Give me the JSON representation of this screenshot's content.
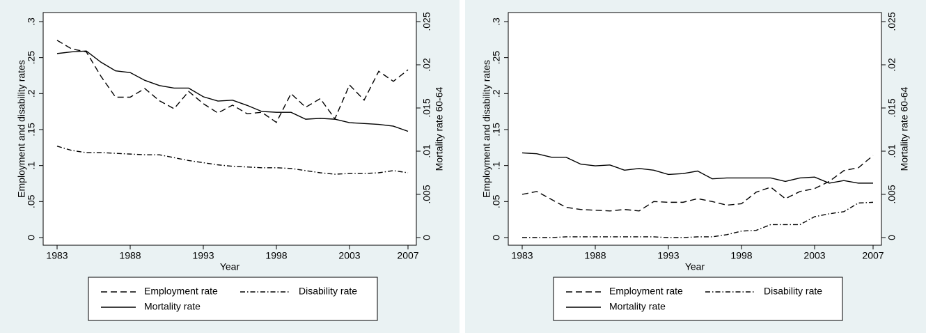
{
  "chart_data": [
    {
      "type": "line",
      "xlabel": "Year",
      "ylabel": "Employment and disability rates",
      "y2label": "Mortality rate 60-64",
      "x": [
        1983,
        1984,
        1985,
        1986,
        1987,
        1988,
        1989,
        1990,
        1991,
        1992,
        1993,
        1994,
        1995,
        1996,
        1997,
        1998,
        1999,
        2000,
        2001,
        2002,
        2003,
        2004,
        2005,
        2006,
        2007
      ],
      "xlim": [
        1983,
        2007
      ],
      "xticks": [
        1983,
        1988,
        1993,
        1998,
        2003,
        2007
      ],
      "ylim": [
        0,
        0.3
      ],
      "yticks": [
        0,
        {
          "value": 0.05,
          "label": ".05"
        },
        {
          "value": 0.1,
          "label": ".1"
        },
        {
          "value": 0.15,
          "label": ".15"
        },
        {
          "value": 0.2,
          "label": ".2"
        },
        {
          "value": 0.25,
          "label": ".25"
        },
        {
          "value": 0.3,
          "label": ".3"
        }
      ],
      "y2lim": [
        0,
        0.025
      ],
      "y2ticks": [
        0,
        {
          "value": 0.005,
          "label": ".005"
        },
        {
          "value": 0.01,
          "label": ".01"
        },
        {
          "value": 0.015,
          "label": ".015"
        },
        {
          "value": 0.02,
          "label": ".02"
        },
        {
          "value": 0.025,
          "label": ".025"
        }
      ],
      "series": [
        {
          "name": "Employment rate",
          "color": "#000000",
          "dash": "dashed",
          "values": [
            0.274,
            0.262,
            0.258,
            0.224,
            0.195,
            0.195,
            0.207,
            0.19,
            0.179,
            0.203,
            0.186,
            0.173,
            0.184,
            0.172,
            0.174,
            0.16,
            0.2,
            0.181,
            0.193,
            0.165,
            0.212,
            0.191,
            0.231,
            0.217,
            0.233
          ]
        },
        {
          "name": "Disability rate",
          "color": "#000000",
          "dash": "dashdot",
          "values": [
            0.127,
            0.121,
            0.118,
            0.118,
            0.117,
            0.116,
            0.115,
            0.115,
            0.111,
            0.107,
            0.104,
            0.101,
            0.099,
            0.098,
            0.097,
            0.097,
            0.096,
            0.093,
            0.09,
            0.088,
            0.089,
            0.089,
            0.09,
            0.093,
            0.09
          ]
        },
        {
          "name": "Mortality rate",
          "color": "#000000",
          "dash": "solid",
          "axis": "y2",
          "values": [
            0.0213,
            0.0215,
            0.0216,
            0.0203,
            0.0193,
            0.0191,
            0.0182,
            0.0176,
            0.0173,
            0.0173,
            0.0163,
            0.0158,
            0.0159,
            0.0153,
            0.0146,
            0.0145,
            0.0145,
            0.0137,
            0.0138,
            0.0137,
            0.0133,
            0.0132,
            0.0131,
            0.0129,
            0.0123
          ]
        }
      ]
    },
    {
      "type": "line",
      "xlabel": "Year",
      "ylabel": "Employment and disability rates",
      "y2label": "Mortality rate 60-64",
      "x": [
        1983,
        1984,
        1985,
        1986,
        1987,
        1988,
        1989,
        1990,
        1991,
        1992,
        1993,
        1994,
        1995,
        1996,
        1997,
        1998,
        1999,
        2000,
        2001,
        2002,
        2003,
        2004,
        2005,
        2006,
        2007
      ],
      "xlim": [
        1983,
        2007
      ],
      "xticks": [
        1983,
        1988,
        1993,
        1998,
        2003,
        2007
      ],
      "ylim": [
        0,
        0.3
      ],
      "yticks": [
        0,
        {
          "value": 0.05,
          "label": ".05"
        },
        {
          "value": 0.1,
          "label": ".1"
        },
        {
          "value": 0.15,
          "label": ".15"
        },
        {
          "value": 0.2,
          "label": ".2"
        },
        {
          "value": 0.25,
          "label": ".25"
        },
        {
          "value": 0.3,
          "label": ".3"
        }
      ],
      "y2lim": [
        0,
        0.025
      ],
      "y2ticks": [
        0,
        {
          "value": 0.005,
          "label": ".005"
        },
        {
          "value": 0.01,
          "label": ".01"
        },
        {
          "value": 0.015,
          "label": ".015"
        },
        {
          "value": 0.02,
          "label": ".02"
        },
        {
          "value": 0.025,
          "label": ".025"
        }
      ],
      "series": [
        {
          "name": "Employment rate",
          "color": "#000000",
          "dash": "dashed",
          "values": [
            0.06,
            0.064,
            0.053,
            0.042,
            0.039,
            0.038,
            0.037,
            0.039,
            0.037,
            0.05,
            0.049,
            0.049,
            0.054,
            0.05,
            0.045,
            0.047,
            0.063,
            0.07,
            0.054,
            0.064,
            0.068,
            0.078,
            0.093,
            0.097,
            0.114
          ]
        },
        {
          "name": "Disability rate",
          "color": "#000000",
          "dash": "dashdot",
          "values": [
            0,
            0,
            0,
            0.001,
            0.001,
            0.001,
            0.001,
            0.001,
            0.001,
            0.001,
            0,
            0,
            0.001,
            0.001,
            0.004,
            0.009,
            0.01,
            0.018,
            0.018,
            0.018,
            0.029,
            0.033,
            0.036,
            0.048,
            0.049
          ]
        },
        {
          "name": "Mortality rate",
          "color": "#000000",
          "dash": "solid",
          "axis": "y2",
          "values": [
            0.0098,
            0.0097,
            0.0093,
            0.0093,
            0.0085,
            0.0083,
            0.0084,
            0.0078,
            0.008,
            0.0078,
            0.0073,
            0.0074,
            0.0077,
            0.0068,
            0.0069,
            0.0069,
            0.0069,
            0.0069,
            0.0065,
            0.0069,
            0.007,
            0.0063,
            0.0066,
            0.0063,
            0.0063
          ]
        }
      ]
    }
  ]
}
